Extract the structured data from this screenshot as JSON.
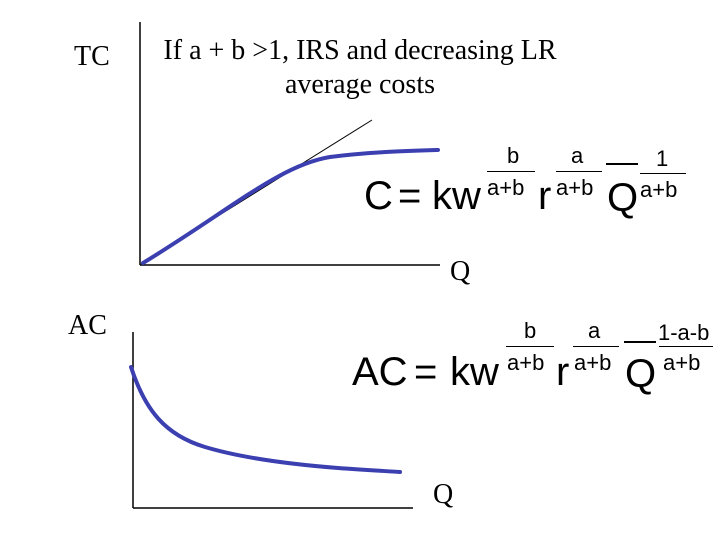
{
  "title": {
    "line1": "If a + b >1, IRS and decreasing LR",
    "line2": "average costs"
  },
  "top_graph": {
    "y_label": "TC",
    "x_label": "Q",
    "curve_color": "#3b3fb0"
  },
  "bottom_graph": {
    "y_label": "AC",
    "x_label": "Q",
    "curve_color": "#3b3fb0"
  },
  "cost_equation": {
    "lhs": "C",
    "equals": "=",
    "kw": "kw",
    "r": "r",
    "Q": "Q",
    "exp_w_num": "b",
    "exp_w_den": "a+b",
    "exp_r_num": "a",
    "exp_r_den": "a+b",
    "exp_q_num": "1",
    "exp_q_den": "a+b"
  },
  "ac_equation": {
    "lhs": "AC",
    "equals": "=",
    "kw": "kw",
    "r": "r",
    "Q": "Q",
    "exp_w_num": "b",
    "exp_w_den": "a+b",
    "exp_r_num": "a",
    "exp_r_den": "a+b",
    "exp_q_num": "1-a-b",
    "exp_q_den": "a+b"
  }
}
